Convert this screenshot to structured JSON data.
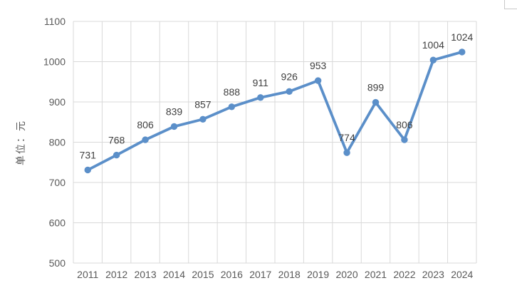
{
  "chart_data": {
    "type": "line",
    "title": "",
    "ylabel": "单位：元",
    "xlabel": "",
    "categories": [
      "2011",
      "2012",
      "2013",
      "2014",
      "2015",
      "2016",
      "2017",
      "2018",
      "2019",
      "2020",
      "2021",
      "2022",
      "2023",
      "2024"
    ],
    "series": [
      {
        "name": "value",
        "values": [
          731,
          768,
          806,
          839,
          857,
          888,
          911,
          926,
          953,
          774,
          899,
          806,
          1004,
          1024
        ]
      }
    ],
    "data_labels": [
      "731",
      "768",
      "806",
      "839",
      "857",
      "888",
      "911",
      "926",
      "953",
      "774",
      "899",
      "806",
      "1004",
      "1024"
    ],
    "yticks": [
      "500",
      "600",
      "700",
      "800",
      "900",
      "1000",
      "1100"
    ],
    "ylim": [
      500,
      1100
    ],
    "grid": true,
    "legend_position": "none",
    "colors": {
      "line": "#5B8FC9",
      "marker": "#5B8FC9",
      "gridline": "#D9D9D9",
      "plot_border": "#D2D2D2",
      "tick_text": "#595959",
      "data_label_text": "#3F3F3F",
      "background": "#FFFFFF",
      "cropped_corner_line": "#C9C9C9"
    }
  }
}
